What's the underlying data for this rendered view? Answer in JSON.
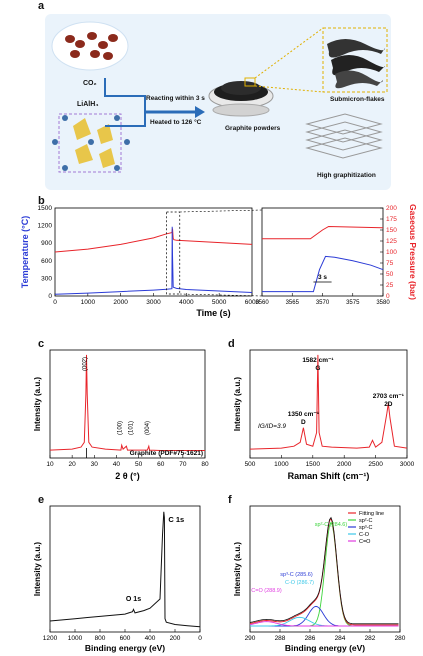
{
  "panel_a": {
    "letter": "a",
    "co2_label": "CO₂",
    "lialh4_label": "LiAlH₄",
    "arrow_text1": "Reacting within 3 s",
    "arrow_text2": "Heated to 126 °C",
    "powder_label": "Graphite powders",
    "flakes_label": "Submicron-flakes",
    "graph_label": "High graphitization"
  },
  "colors": {
    "red": "#e8242a",
    "blue": "#2b3bd6",
    "green": "#3cd43c",
    "magenta": "#e03ce0",
    "cyan": "#3cc8e8",
    "dark": "#1a1a1a"
  },
  "chart_data": [
    {
      "panel": "b",
      "type": "line",
      "xlabel": "Time (s)",
      "ylabel_left": "Temperature (°C)",
      "ylabel_right": "Gaseous Pressure (bar)",
      "xlim": [
        0,
        6000
      ],
      "xticks": [
        "0",
        "1000",
        "2000",
        "3000",
        "4000",
        "5000",
        "6000"
      ],
      "ylim_left": [
        0,
        1500
      ],
      "yticks_left": [
        "0",
        "300",
        "600",
        "900",
        "1200",
        "1500"
      ],
      "ylim_right": [
        0,
        200
      ],
      "yticks_right": [
        "0",
        "25",
        "50",
        "75",
        "100",
        "125",
        "150",
        "175",
        "200"
      ],
      "series": [
        {
          "color": "red",
          "x": [
            0,
            1000,
            2000,
            3000,
            3400,
            3560,
            3580,
            3600,
            3620,
            3700,
            6000
          ],
          "y": [
            750,
            800,
            880,
            990,
            1060,
            1080,
            1150,
            980,
            960,
            950,
            880
          ]
        },
        {
          "color": "blue",
          "x": [
            0,
            1000,
            2000,
            3000,
            3400,
            3560,
            3570,
            3580,
            3600,
            3700,
            4000,
            6000
          ],
          "y": [
            30,
            50,
            75,
            100,
            115,
            125,
            1180,
            700,
            150,
            130,
            110,
            60
          ]
        }
      ]
    },
    {
      "panel": "b-inset",
      "type": "line",
      "xlim": [
        3560,
        3580
      ],
      "xticks": [
        "3560",
        "3565",
        "3570",
        "3575",
        "3580"
      ],
      "annotation": "3 s",
      "series": [
        {
          "color": "red",
          "x": [
            3560,
            3568,
            3570,
            3571,
            3580
          ],
          "y": [
            130,
            130,
            150,
            158,
            155
          ]
        },
        {
          "color": "blue",
          "x": [
            3560,
            3568.5,
            3569.5,
            3570.5,
            3572,
            3575,
            3578,
            3580
          ],
          "y": [
            10,
            10,
            60,
            90,
            88,
            80,
            70,
            60
          ]
        }
      ]
    },
    {
      "panel": "c",
      "type": "line",
      "xlabel": "2 θ (°)",
      "ylabel": "Intensity (a.u.)",
      "xlim": [
        10,
        80
      ],
      "xticks": [
        "10",
        "20",
        "30",
        "40",
        "50",
        "60",
        "70",
        "80"
      ],
      "peaks": [
        {
          "label": "(002)",
          "x": 26.5
        },
        {
          "label": "(100)",
          "x": 42.4
        },
        {
          "label": "(101)",
          "x": 44.5
        },
        {
          "label": "(004)",
          "x": 54.6
        }
      ],
      "reference": "Graphite (PDF#75-1621)",
      "x": [
        10,
        20,
        24,
        25.5,
        26.2,
        26.5,
        26.8,
        27.5,
        29,
        35,
        42,
        42.4,
        43,
        44.5,
        45,
        50,
        54,
        54.6,
        55,
        60,
        70,
        80
      ],
      "y": [
        2,
        3,
        5,
        10,
        60,
        100,
        60,
        10,
        5,
        3,
        2,
        7,
        3,
        6,
        2,
        2,
        2,
        6,
        2,
        1.5,
        1.5,
        1.5
      ]
    },
    {
      "panel": "d",
      "type": "line",
      "xlabel": "Raman Shift (cm⁻¹)",
      "ylabel": "Intensity (a.u.)",
      "xlim": [
        500,
        3000
      ],
      "xticks": [
        "500",
        "1000",
        "1500",
        "2000",
        "2500",
        "3000"
      ],
      "labels": [
        {
          "text": "1582 cm⁻¹",
          "sub": "G",
          "x": 1582
        },
        {
          "text": "1350 cm⁻¹",
          "sub": "D",
          "x": 1350
        },
        {
          "text": "2703 cm⁻¹",
          "sub": "2D",
          "x": 2703
        }
      ],
      "ratio_text": "IG/ID=3.9",
      "x": [
        500,
        1000,
        1200,
        1300,
        1350,
        1400,
        1500,
        1560,
        1582,
        1600,
        1650,
        1800,
        2200,
        2400,
        2450,
        2500,
        2600,
        2680,
        2703,
        2730,
        2800,
        3000
      ],
      "y": [
        3,
        4,
        6,
        10,
        25,
        8,
        6,
        20,
        100,
        20,
        6,
        5,
        4,
        5,
        12,
        5,
        10,
        40,
        50,
        35,
        6,
        4
      ]
    },
    {
      "panel": "e",
      "type": "line",
      "xlabel": "Binding energy (eV)",
      "ylabel": "Intensity (a.u.)",
      "xlim": [
        1200,
        0
      ],
      "xticks": [
        "1200",
        "1000",
        "800",
        "600",
        "400",
        "200",
        "0"
      ],
      "labels": [
        {
          "text": "C 1s",
          "x": 285
        },
        {
          "text": "O 1s",
          "x": 532
        }
      ],
      "x": [
        1200,
        1100,
        1000,
        900,
        800,
        700,
        600,
        540,
        532,
        520,
        450,
        400,
        320,
        300,
        290,
        285,
        280,
        270,
        200,
        100,
        0
      ],
      "y": [
        6,
        7,
        8,
        9,
        10,
        11,
        12,
        14,
        16,
        13,
        15,
        17,
        25,
        80,
        100,
        95,
        8,
        5,
        3,
        2,
        1
      ]
    },
    {
      "panel": "f",
      "type": "line",
      "xlabel": "Binding energy (eV)",
      "ylabel": "Intensity (a.u.)",
      "xlim": [
        290,
        280
      ],
      "xticks": [
        "290",
        "288",
        "286",
        "284",
        "282",
        "280"
      ],
      "legend": [
        "Fitting line",
        "sp²-C",
        "sp³-C",
        "C-O",
        "C=O"
      ],
      "peak_labels": [
        {
          "text": "sp²-C (284.6)",
          "color": "green"
        },
        {
          "text": "sp³-C (285.6)",
          "color": "blue"
        },
        {
          "text": "C-O (286.7)",
          "color": "cyan"
        },
        {
          "text": "C=O (288.9)",
          "color": "magenta"
        }
      ]
    }
  ]
}
